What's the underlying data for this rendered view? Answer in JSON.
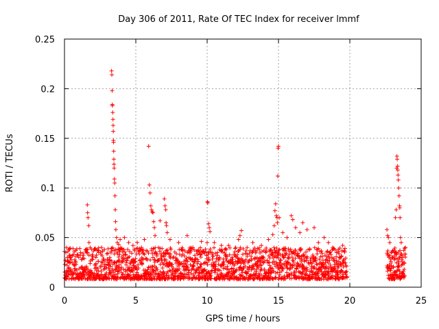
{
  "chart_data": {
    "type": "scatter",
    "title": "Day 306 of 2011, Rate Of TEC Index for receiver lmmf",
    "xlabel": "GPS time / hours",
    "ylabel": "ROTI / TECUs",
    "xlim": [
      0,
      25
    ],
    "ylim": [
      0,
      0.25
    ],
    "grid": true,
    "marker": "plus",
    "color": "#ff0000",
    "x_ticks": [
      "0",
      "5",
      "10",
      "15",
      "20",
      "25"
    ],
    "y_ticks": [
      "0",
      "0.05",
      "0.1",
      "0.15",
      "0.2",
      "0.25"
    ],
    "x_tick_values": [
      0,
      5,
      10,
      15,
      20,
      25
    ],
    "y_tick_values": [
      0,
      0.05,
      0.1,
      0.15,
      0.2,
      0.25
    ],
    "baseline": {
      "x_range": [
        [
          0,
          19.8
        ],
        [
          22.6,
          23.9
        ]
      ],
      "typical_min": 0.008,
      "typical_max": 0.04
    },
    "points": [
      [
        0.1,
        0.035
      ],
      [
        0.2,
        0.03
      ],
      [
        0.4,
        0.025
      ],
      [
        0.8,
        0.031
      ],
      [
        1.0,
        0.03
      ],
      [
        1.2,
        0.028
      ],
      [
        1.6,
        0.083
      ],
      [
        1.62,
        0.075
      ],
      [
        1.65,
        0.07
      ],
      [
        1.7,
        0.062
      ],
      [
        1.72,
        0.045
      ],
      [
        1.8,
        0.04
      ],
      [
        2.0,
        0.031
      ],
      [
        2.2,
        0.03
      ],
      [
        2.4,
        0.035
      ],
      [
        2.6,
        0.04
      ],
      [
        2.8,
        0.038
      ],
      [
        3.3,
        0.218
      ],
      [
        3.32,
        0.214
      ],
      [
        3.34,
        0.198
      ],
      [
        3.35,
        0.184
      ],
      [
        3.36,
        0.183
      ],
      [
        3.38,
        0.176
      ],
      [
        3.4,
        0.169
      ],
      [
        3.41,
        0.163
      ],
      [
        3.42,
        0.157
      ],
      [
        3.43,
        0.148
      ],
      [
        3.44,
        0.146
      ],
      [
        3.45,
        0.137
      ],
      [
        3.46,
        0.129
      ],
      [
        3.47,
        0.124
      ],
      [
        3.48,
        0.12
      ],
      [
        3.5,
        0.109
      ],
      [
        3.52,
        0.105
      ],
      [
        3.54,
        0.092
      ],
      [
        3.56,
        0.078
      ],
      [
        3.58,
        0.066
      ],
      [
        3.6,
        0.058
      ],
      [
        3.65,
        0.05
      ],
      [
        3.7,
        0.045
      ],
      [
        3.8,
        0.043
      ],
      [
        3.9,
        0.048
      ],
      [
        4.2,
        0.05
      ],
      [
        4.5,
        0.045
      ],
      [
        4.8,
        0.042
      ],
      [
        5.1,
        0.045
      ],
      [
        5.4,
        0.04
      ],
      [
        5.6,
        0.048
      ],
      [
        5.9,
        0.142
      ],
      [
        5.95,
        0.103
      ],
      [
        6.0,
        0.095
      ],
      [
        6.05,
        0.082
      ],
      [
        6.1,
        0.078
      ],
      [
        6.15,
        0.076
      ],
      [
        6.2,
        0.075
      ],
      [
        6.25,
        0.066
      ],
      [
        6.3,
        0.06
      ],
      [
        6.35,
        0.052
      ],
      [
        6.7,
        0.067
      ],
      [
        7.0,
        0.089
      ],
      [
        7.05,
        0.082
      ],
      [
        7.1,
        0.078
      ],
      [
        7.12,
        0.065
      ],
      [
        7.15,
        0.062
      ],
      [
        7.2,
        0.055
      ],
      [
        7.4,
        0.048
      ],
      [
        8.0,
        0.045
      ],
      [
        8.6,
        0.052
      ],
      [
        9.0,
        0.04
      ],
      [
        9.6,
        0.046
      ],
      [
        10.0,
        0.045
      ],
      [
        10.02,
        0.086
      ],
      [
        10.05,
        0.085
      ],
      [
        10.1,
        0.064
      ],
      [
        10.15,
        0.06
      ],
      [
        10.2,
        0.056
      ],
      [
        10.5,
        0.045
      ],
      [
        11.0,
        0.042
      ],
      [
        11.5,
        0.042
      ],
      [
        12.0,
        0.04
      ],
      [
        12.2,
        0.048
      ],
      [
        12.3,
        0.052
      ],
      [
        12.4,
        0.057
      ],
      [
        12.8,
        0.04
      ],
      [
        13.2,
        0.045
      ],
      [
        13.8,
        0.042
      ],
      [
        14.3,
        0.048
      ],
      [
        14.6,
        0.053
      ],
      [
        14.7,
        0.062
      ],
      [
        14.75,
        0.077
      ],
      [
        14.8,
        0.084
      ],
      [
        14.85,
        0.072
      ],
      [
        14.9,
        0.07
      ],
      [
        14.92,
        0.065
      ],
      [
        14.95,
        0.112
      ],
      [
        14.97,
        0.14
      ],
      [
        15.0,
        0.142
      ],
      [
        15.05,
        0.07
      ],
      [
        15.3,
        0.055
      ],
      [
        15.6,
        0.05
      ],
      [
        15.9,
        0.072
      ],
      [
        16.0,
        0.068
      ],
      [
        16.2,
        0.06
      ],
      [
        16.5,
        0.055
      ],
      [
        16.7,
        0.065
      ],
      [
        17.0,
        0.058
      ],
      [
        17.5,
        0.06
      ],
      [
        17.8,
        0.045
      ],
      [
        18.2,
        0.05
      ],
      [
        18.5,
        0.045
      ],
      [
        18.8,
        0.04
      ],
      [
        19.2,
        0.038
      ],
      [
        19.5,
        0.042
      ],
      [
        22.6,
        0.058
      ],
      [
        22.65,
        0.052
      ],
      [
        22.7,
        0.05
      ],
      [
        22.8,
        0.045
      ],
      [
        22.9,
        0.035
      ],
      [
        23.0,
        0.03
      ],
      [
        23.1,
        0.036
      ],
      [
        23.2,
        0.07
      ],
      [
        23.25,
        0.078
      ],
      [
        23.28,
        0.12
      ],
      [
        23.3,
        0.132
      ],
      [
        23.32,
        0.129
      ],
      [
        23.35,
        0.122
      ],
      [
        23.36,
        0.118
      ],
      [
        23.38,
        0.113
      ],
      [
        23.4,
        0.108
      ],
      [
        23.42,
        0.1
      ],
      [
        23.45,
        0.092
      ],
      [
        23.48,
        0.082
      ],
      [
        23.5,
        0.08
      ],
      [
        23.52,
        0.07
      ],
      [
        23.55,
        0.05
      ],
      [
        23.6,
        0.045
      ],
      [
        23.7,
        0.03
      ],
      [
        23.8,
        0.025
      ]
    ]
  }
}
